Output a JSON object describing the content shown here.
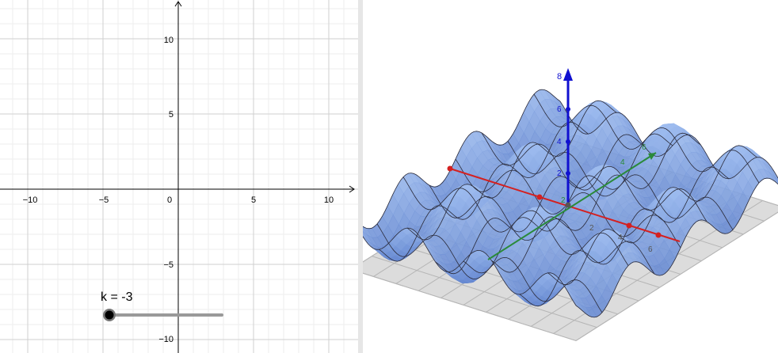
{
  "graphics2d": {
    "x_ticks": [
      "−10",
      "−5",
      "0",
      "5",
      "10"
    ],
    "y_ticks": [
      "10",
      "5",
      "−5",
      "−10"
    ],
    "slider": {
      "name": "k",
      "text": "k = -3",
      "value": -3
    }
  },
  "graphics3d": {
    "z_ticks": [
      "8",
      "6",
      "4",
      "2"
    ],
    "x_ticks": [
      "6",
      "4",
      "2"
    ],
    "y_ticks": [
      "6",
      "4",
      "2"
    ],
    "colors": {
      "surface": "#7f9fdc",
      "x_axis": "#d42020",
      "y_axis": "#2a8a3a",
      "z_axis": "#1010d0",
      "floor": "#d8d8d8"
    }
  }
}
